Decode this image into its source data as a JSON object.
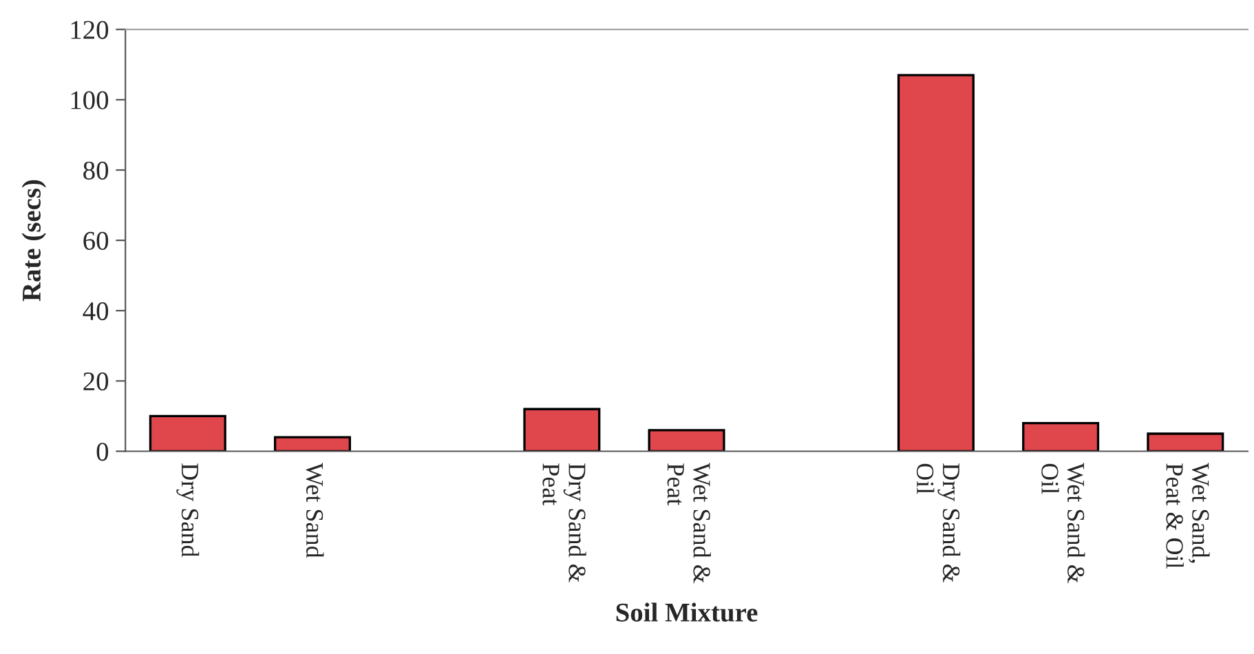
{
  "chart_data": {
    "type": "bar",
    "xlabel": "Soil Mixture",
    "ylabel": "Rate (secs)",
    "categories": [
      "Dry Sand",
      "Wet Sand",
      null,
      "Dry Sand &\nPeat",
      "Wet Sand &\nPeat",
      null,
      "Dry Sand &\nOil",
      "Wet Sand &\nOil",
      "Wet Sand,\nPeat & Oil"
    ],
    "values": [
      10,
      4,
      null,
      12,
      6,
      null,
      107,
      8,
      5
    ],
    "color": "#e0474c",
    "ylim": [
      0,
      120
    ],
    "yticks": [
      0,
      20,
      40,
      60,
      80,
      100,
      120
    ],
    "grid": false,
    "legend": false
  }
}
